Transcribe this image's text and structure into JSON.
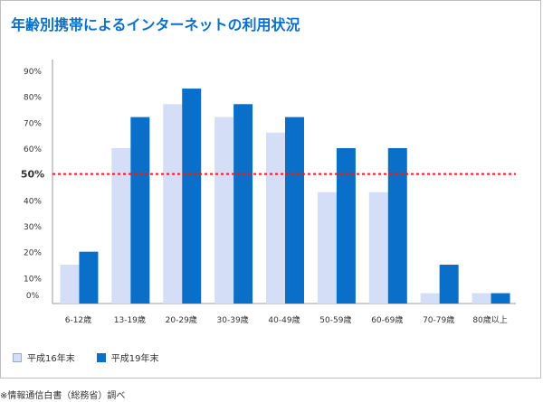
{
  "title": "年齢別携帯によるインターネットの利用状況",
  "source_note": "※情報通信白書（総務省）調べ",
  "reference_line": {
    "value": 50,
    "label": "50%",
    "color": "#e02020"
  },
  "chart_data": {
    "type": "bar",
    "categories": [
      "6-12歳",
      "13-19歳",
      "20-29歳",
      "30-39歳",
      "40-49歳",
      "50-59歳",
      "60-69歳",
      "70-79歳",
      "80歳以上"
    ],
    "series": [
      {
        "name": "平成16年末",
        "color": "#d5def7",
        "values": [
          15,
          60,
          77,
          72,
          66,
          43,
          43,
          4,
          4
        ]
      },
      {
        "name": "平成19年末",
        "color": "#0a6fc9",
        "values": [
          20,
          72,
          83,
          77,
          72,
          60,
          60,
          15,
          4
        ]
      }
    ],
    "y_ticks": [
      {
        "value": 0,
        "label": "0%"
      },
      {
        "value": 10,
        "label": "10%"
      },
      {
        "value": 20,
        "label": "20%"
      },
      {
        "value": 30,
        "label": "30%"
      },
      {
        "value": 40,
        "label": "40%"
      },
      {
        "value": 60,
        "label": "60%"
      },
      {
        "value": 70,
        "label": "70%"
      },
      {
        "value": 80,
        "label": "80%"
      },
      {
        "value": 90,
        "label": "90%"
      }
    ],
    "ylim": [
      0,
      100
    ],
    "grid": false,
    "legend_position": "bottom-left"
  }
}
